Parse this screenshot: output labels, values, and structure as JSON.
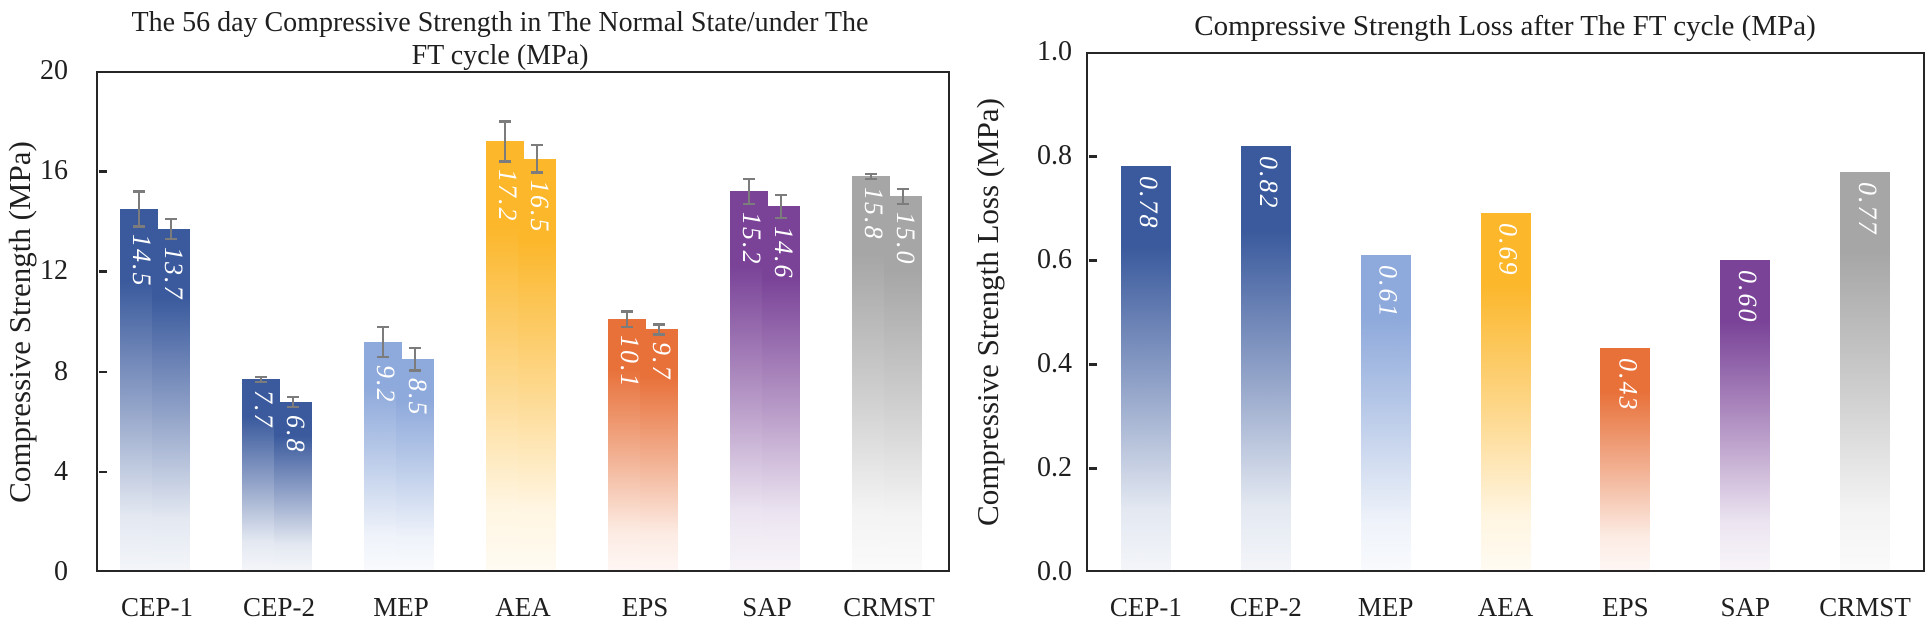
{
  "figure": {
    "background": "#ffffff",
    "axis_color": "#262626",
    "error_bar_color": "#7c7c7c",
    "value_label_color": "#ffffff"
  },
  "chart_data": [
    {
      "id": "strength",
      "type": "bar",
      "title_lines": [
        "The 56 day Compressive Strength in The Normal State/under The",
        "FT cycle (MPa)"
      ],
      "ylabel": "Compressive Strength (MPa)",
      "xlabel": "",
      "ylim": [
        0,
        20
      ],
      "yticks": [
        4,
        8,
        12,
        16
      ],
      "ytick_labels": [
        "0",
        "4",
        "8",
        "12",
        "16",
        "20"
      ],
      "ytick_values": [
        0,
        4,
        8,
        12,
        16,
        20
      ],
      "grid": false,
      "legend": "none",
      "categories": [
        "CEP-1",
        "CEP-2",
        "MEP",
        "AEA",
        "EPS",
        "SAP",
        "CRMST"
      ],
      "series": [
        {
          "name": "Normal State",
          "values": [
            14.5,
            7.7,
            9.2,
            17.2,
            10.1,
            15.2,
            15.8
          ],
          "labels": [
            "14.5",
            "7.7",
            "9.2",
            "17.2",
            "10.1",
            "15.2",
            "15.8"
          ],
          "errors_estimated": [
            0.7,
            0.1,
            0.6,
            0.8,
            0.3,
            0.5,
            0.1
          ]
        },
        {
          "name": "under The FT cycle",
          "values": [
            13.7,
            6.8,
            8.5,
            16.5,
            9.7,
            14.6,
            15.0
          ],
          "labels": [
            "13.7",
            "6.8",
            "8.5",
            "16.5",
            "9.7",
            "14.6",
            "15.0"
          ],
          "errors_estimated": [
            0.4,
            0.2,
            0.45,
            0.55,
            0.2,
            0.45,
            0.3
          ]
        }
      ],
      "bar_top_colors": [
        "#3A5A9D",
        "#3A5A9D",
        "#8EA9DB",
        "#FCB72B",
        "#E8713A",
        "#7A4398",
        "#A6A6A6"
      ],
      "gradient": "top color fading to near-white at bar bottom"
    },
    {
      "id": "loss",
      "type": "bar",
      "title": "Compressive Strength Loss after The FT cycle (MPa)",
      "ylabel": "Compressive Strength Loss (MPa)",
      "xlabel": "",
      "ylim": [
        0,
        1.0
      ],
      "yticks": [
        0.2,
        0.4,
        0.6,
        0.8
      ],
      "ytick_labels": [
        "0.0",
        "0.2",
        "0.4",
        "0.6",
        "0.8",
        "1.0"
      ],
      "ytick_values": [
        0,
        0.2,
        0.4,
        0.6,
        0.8,
        1.0
      ],
      "grid": false,
      "legend": "none",
      "categories": [
        "CEP-1",
        "CEP-2",
        "MEP",
        "AEA",
        "EPS",
        "SAP",
        "CRMST"
      ],
      "series": [
        {
          "name": "Strength loss",
          "values": [
            0.78,
            0.82,
            0.61,
            0.69,
            0.43,
            0.6,
            0.77
          ],
          "labels": [
            "0.78",
            "0.82",
            "0.61",
            "0.69",
            "0.43",
            "0.60",
            "0.77"
          ]
        }
      ],
      "bar_top_colors": [
        "#3A5A9D",
        "#3A5A9D",
        "#8EA9DB",
        "#FCB72B",
        "#E8713A",
        "#7A4398",
        "#A6A6A6"
      ],
      "gradient": "top color fading to near-white at bar bottom"
    }
  ]
}
